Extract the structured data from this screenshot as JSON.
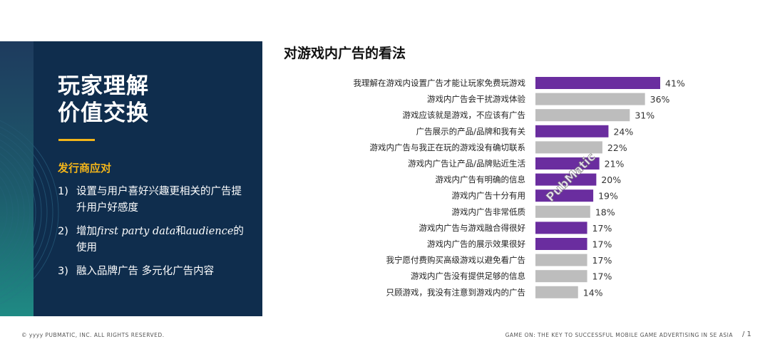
{
  "panel": {
    "title_line1": "玩家理解",
    "title_line2": "价值交换",
    "subtitle": "发行商应对",
    "items": [
      {
        "num": "1)",
        "text_a": "设置与用户喜好兴趣更相关的广告提升用户好感度",
        "it_a": "",
        "text_b": "",
        "it_b": "",
        "text_c": ""
      },
      {
        "num": "2)",
        "text_a": "增加",
        "it_a": "first party data",
        "text_b": "和",
        "it_b": "audience",
        "text_c": "的使用"
      },
      {
        "num": "3)",
        "text_a": "融入品牌广告 多元化广告内容",
        "it_a": "",
        "text_b": "",
        "it_b": "",
        "text_c": ""
      }
    ]
  },
  "chart_data": {
    "type": "bar",
    "orientation": "horizontal",
    "title": "对游戏内广告的看法",
    "categories": [
      "我理解在游戏内设置广告才能让玩家免费玩游戏",
      "游戏内广告会干扰游戏体验",
      "游戏应该就是游戏，不应该有广告",
      "广告展示的产品/品牌和我有关",
      "游戏内广告与我正在玩的游戏没有确切联系",
      "游戏内广告让产品/品牌贴近生活",
      "游戏内广告有明确的信息",
      "游戏内广告十分有用",
      "游戏内广告非常低质",
      "游戏内广告与游戏融合得很好",
      "游戏内广告的展示效果很好",
      "我宁愿付费购买高级游戏以避免看广告",
      "游戏内广告没有提供足够的信息",
      "只顾游戏，我没有注意到游戏内的广告"
    ],
    "values": [
      41,
      36,
      31,
      24,
      22,
      21,
      20,
      19,
      18,
      17,
      17,
      17,
      17,
      14
    ],
    "value_labels": [
      "41%",
      "36%",
      "31%",
      "24%",
      "22%",
      "21%",
      "20%",
      "19%",
      "18%",
      "17%",
      "17%",
      "17%",
      "17%",
      "14%"
    ],
    "bar_colors": [
      "purple",
      "gray",
      "gray",
      "purple",
      "gray",
      "purple",
      "purple",
      "purple",
      "gray",
      "purple",
      "purple",
      "gray",
      "gray",
      "gray"
    ],
    "colors": {
      "purple": "#6a2d9f",
      "gray": "#bdbdbd"
    },
    "xlim": [
      0,
      41
    ],
    "grid": false,
    "watermark": "PubMatic"
  },
  "footer": {
    "left": "© yyyy PUBMATIC, INC. ALL RIGHTS RESERVED.",
    "right": "GAME ON: THE KEY TO SUCCESSFUL MOBILE GAME ADVERTISING IN SE ASIA",
    "page": "/ 1"
  }
}
